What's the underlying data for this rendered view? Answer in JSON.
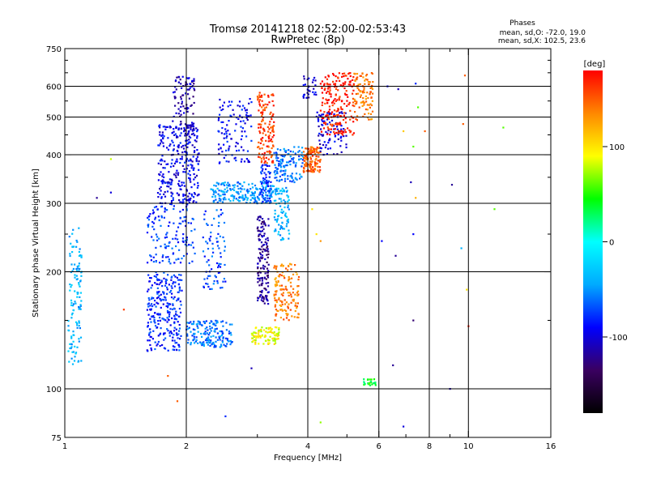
{
  "chart_data": {
    "type": "scatter",
    "title": "Tromsø 20141218 02:52:00-02:53:43",
    "subtitle": "RwPretec (8p)",
    "xlabel": "Frequency [MHz]",
    "ylabel": "Stationary phase Virtual Height [km]",
    "x_scale": "log",
    "y_scale": "log",
    "xlim": [
      1,
      16
    ],
    "ylim": [
      75,
      750
    ],
    "x_ticks": [
      1,
      2,
      4,
      6,
      8,
      10,
      16
    ],
    "x_minor_ticks": [
      3,
      5,
      7,
      9
    ],
    "y_ticks": [
      75,
      100,
      200,
      300,
      400,
      500,
      600,
      750
    ],
    "y_minor_ticks": [
      150,
      250,
      350,
      450,
      550,
      650,
      700
    ],
    "grid": true,
    "grid_x": [
      2,
      4,
      6,
      8,
      10
    ],
    "grid_y": [
      100,
      200,
      300,
      400,
      500,
      600
    ],
    "color_by": "phase",
    "colorbar": {
      "label": "[deg]",
      "range": [
        -180,
        180
      ],
      "ticks": [
        100,
        0,
        -100
      ],
      "colormap": "rainbow",
      "stops": [
        "#000000",
        "#3a0060",
        "#0000ff",
        "#00aaff",
        "#00ffff",
        "#00ff00",
        "#ffff00",
        "#ff8800",
        "#ff0000"
      ]
    },
    "stats": {
      "header": "Phases",
      "line1": "mean, sd,O: -72.0, 19.0",
      "line2": "mean, sd,X: 102.5, 23.6"
    },
    "clusters": [
      {
        "f": [
          1.02,
          1.1
        ],
        "h": [
          115,
          260
        ],
        "phase": -40,
        "n": 120
      },
      {
        "f": [
          1.6,
          1.95
        ],
        "h": [
          125,
          200
        ],
        "phase": -80,
        "n": 260
      },
      {
        "f": [
          1.6,
          2.1
        ],
        "h": [
          210,
          300
        ],
        "phase": -75,
        "n": 140
      },
      {
        "f": [
          1.7,
          2.15
        ],
        "h": [
          300,
          480
        ],
        "phase": -95,
        "n": 300
      },
      {
        "f": [
          1.85,
          2.1
        ],
        "h": [
          450,
          640
        ],
        "phase": -110,
        "n": 90
      },
      {
        "f": [
          2.0,
          2.6
        ],
        "h": [
          128,
          150
        ],
        "phase": -60,
        "n": 160
      },
      {
        "f": [
          2.3,
          3.3
        ],
        "h": [
          300,
          340
        ],
        "phase": -50,
        "n": 200
      },
      {
        "f": [
          2.2,
          2.5
        ],
        "h": [
          180,
          290
        ],
        "phase": -70,
        "n": 80
      },
      {
        "f": [
          2.4,
          2.9
        ],
        "h": [
          380,
          560
        ],
        "phase": -90,
        "n": 110
      },
      {
        "f": [
          3.0,
          3.2
        ],
        "h": [
          165,
          280
        ],
        "phase": -120,
        "n": 150
      },
      {
        "f": [
          3.05,
          3.25
        ],
        "h": [
          300,
          380
        ],
        "phase": -80,
        "n": 60
      },
      {
        "f": [
          2.9,
          3.4
        ],
        "h": [
          130,
          145
        ],
        "phase": 90,
        "n": 90
      },
      {
        "f": [
          3.3,
          3.8
        ],
        "h": [
          150,
          210
        ],
        "phase": 140,
        "n": 140
      },
      {
        "f": [
          3.3,
          3.6
        ],
        "h": [
          240,
          330
        ],
        "phase": -40,
        "n": 90
      },
      {
        "f": [
          3.0,
          3.3
        ],
        "h": [
          380,
          580
        ],
        "phase": 160,
        "n": 140
      },
      {
        "f": [
          3.3,
          3.9
        ],
        "h": [
          340,
          420
        ],
        "phase": -60,
        "n": 120
      },
      {
        "f": [
          3.9,
          4.3
        ],
        "h": [
          360,
          420
        ],
        "phase": 150,
        "n": 120
      },
      {
        "f": [
          4.2,
          5.0
        ],
        "h": [
          400,
          520
        ],
        "phase": -100,
        "n": 90
      },
      {
        "f": [
          4.3,
          5.2
        ],
        "h": [
          450,
          650
        ],
        "phase": 170,
        "n": 200
      },
      {
        "f": [
          5.2,
          5.8
        ],
        "h": [
          490,
          650
        ],
        "phase": 140,
        "n": 100
      },
      {
        "f": [
          3.9,
          4.2
        ],
        "h": [
          560,
          640
        ],
        "phase": -100,
        "n": 30
      },
      {
        "f": [
          5.5,
          5.9
        ],
        "h": [
          102,
          106
        ],
        "phase": 40,
        "n": 25
      }
    ],
    "sparse_points": [
      [
        6.1,
        240,
        -90
      ],
      [
        6.6,
        220,
        -120
      ],
      [
        7.3,
        250,
        -90
      ],
      [
        7.2,
        340,
        -110
      ],
      [
        7.4,
        310,
        120
      ],
      [
        7.3,
        150,
        -130
      ],
      [
        9.0,
        100,
        -110
      ],
      [
        9.1,
        335,
        -120
      ],
      [
        9.6,
        230,
        -40
      ],
      [
        9.7,
        480,
        150
      ],
      [
        9.8,
        640,
        150
      ],
      [
        9.9,
        180,
        100
      ],
      [
        10.0,
        145,
        170
      ],
      [
        11.6,
        290,
        60
      ],
      [
        12.2,
        470,
        60
      ],
      [
        6.7,
        590,
        -110
      ],
      [
        6.3,
        600,
        -90
      ],
      [
        7.4,
        610,
        -80
      ],
      [
        7.5,
        530,
        60
      ],
      [
        6.9,
        80,
        -100
      ],
      [
        7.8,
        460,
        150
      ],
      [
        7.3,
        420,
        60
      ],
      [
        6.5,
        115,
        -120
      ],
      [
        4.3,
        82,
        70
      ],
      [
        1.9,
        93,
        150
      ],
      [
        1.8,
        108,
        150
      ],
      [
        2.5,
        85,
        -80
      ],
      [
        2.9,
        113,
        -110
      ],
      [
        1.4,
        160,
        160
      ],
      [
        1.3,
        390,
        80
      ],
      [
        1.3,
        320,
        -100
      ],
      [
        1.2,
        310,
        -120
      ],
      [
        4.2,
        250,
        100
      ],
      [
        4.1,
        290,
        100
      ],
      [
        4.3,
        240,
        130
      ],
      [
        6.9,
        460,
        110
      ]
    ]
  }
}
